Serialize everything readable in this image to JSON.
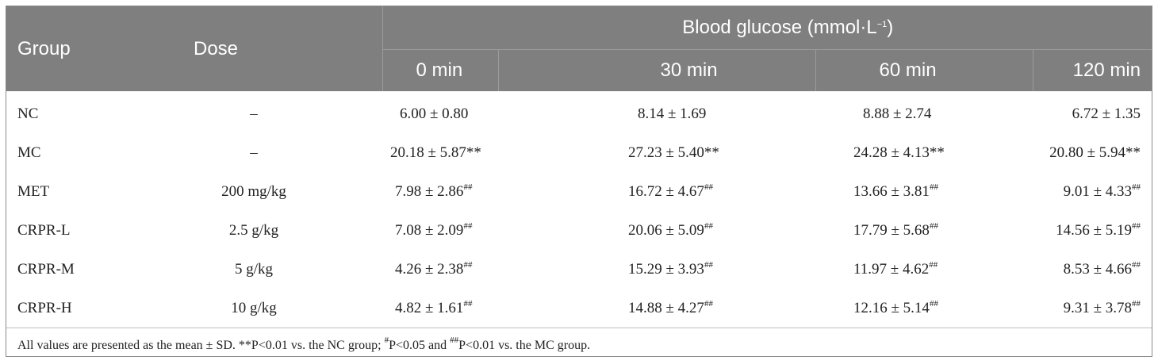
{
  "header": {
    "group": "Group",
    "dose": "Dose",
    "blood_glucose": "Blood glucose (mmol·L",
    "blood_glucose_unit_exp": "−1",
    "blood_glucose_close": ")",
    "times": [
      "0 min",
      "30 min",
      "60 min",
      "120 min"
    ]
  },
  "rows": [
    {
      "group": "NC",
      "dose": "–",
      "v0": "6.00 ± 0.80",
      "s0": "",
      "v30": "8.14 ± 1.69",
      "s30": "",
      "v60": "8.88 ± 2.74",
      "s60": "",
      "v120": "6.72 ± 1.35",
      "s120": ""
    },
    {
      "group": "MC",
      "dose": "–",
      "v0": "20.18 ± 5.87**",
      "s0": "",
      "v30": "27.23 ± 5.40**",
      "s30": "",
      "v60": "24.28 ± 4.13**",
      "s60": "",
      "v120": "20.80 ± 5.94**",
      "s120": ""
    },
    {
      "group": "MET",
      "dose": "200 mg/kg",
      "v0": "7.98 ± 2.86",
      "s0": "##",
      "v30": "16.72 ± 4.67",
      "s30": "##",
      "v60": "13.66 ± 3.81",
      "s60": "##",
      "v120": "9.01 ± 4.33",
      "s120": "##"
    },
    {
      "group": "CRPR-L",
      "dose": "2.5 g/kg",
      "v0": "7.08 ± 2.09",
      "s0": "##",
      "v30": "20.06 ± 5.09",
      "s30": "##",
      "v60": "17.79 ± 5.68",
      "s60": "##",
      "v120": "14.56 ± 5.19",
      "s120": "##"
    },
    {
      "group": "CRPR-M",
      "dose": "5 g/kg",
      "v0": "4.26 ± 2.38",
      "s0": "##",
      "v30": "15.29 ± 3.93",
      "s30": "##",
      "v60": "11.97 ± 4.62",
      "s60": "##",
      "v120": "8.53 ± 4.66",
      "s120": "##"
    },
    {
      "group": "CRPR-H",
      "dose": "10 g/kg",
      "v0": "4.82 ± 1.61",
      "s0": "##",
      "v30": "14.88 ± 4.27",
      "s30": "##",
      "v60": "12.16 ± 5.14",
      "s60": "##",
      "v120": "9.31 ± 3.78",
      "s120": "##"
    }
  ],
  "footnote": {
    "part1": "All values are presented as the mean ± SD. **P<0.01 vs. the NC group; ",
    "sup1": "#",
    "part2": "P<0.05 and ",
    "sup2": "##",
    "part3": "P<0.01 vs. the MC group."
  }
}
